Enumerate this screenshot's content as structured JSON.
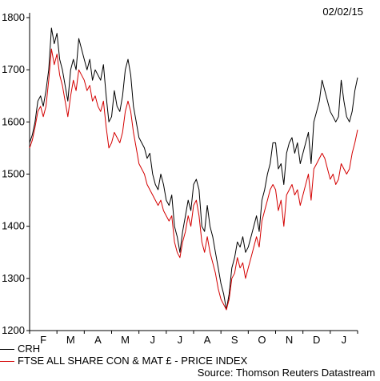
{
  "header": {
    "date": "02/02/15"
  },
  "legend": [
    {
      "label": "CRH",
      "color": "#000000"
    },
    {
      "label": "FTSE ALL SHARE CON & MAT £ - PRICE INDEX",
      "color": "#d40000"
    }
  ],
  "footer": {
    "source": "Source: Thomson Reuters Datastream"
  },
  "chart_data": {
    "type": "line",
    "title": "",
    "xlabel": "",
    "ylabel": "",
    "ylim": [
      1200,
      1800
    ],
    "yticks": [
      1200,
      1300,
      1400,
      1500,
      1600,
      1700,
      1800
    ],
    "xlim": [
      0,
      12
    ],
    "categories": [
      "F",
      "M",
      "A",
      "M",
      "J",
      "J",
      "A",
      "S",
      "O",
      "N",
      "D",
      "J"
    ],
    "grid": false,
    "legend_position": "bottom-left",
    "series": [
      {
        "name": "CRH",
        "color": "#000000",
        "x": [
          0,
          0.1,
          0.2,
          0.3,
          0.4,
          0.5,
          0.6,
          0.7,
          0.8,
          0.9,
          1.0,
          1.1,
          1.2,
          1.3,
          1.4,
          1.5,
          1.6,
          1.7,
          1.8,
          1.9,
          2.0,
          2.1,
          2.2,
          2.3,
          2.4,
          2.5,
          2.6,
          2.7,
          2.8,
          2.9,
          3.0,
          3.1,
          3.2,
          3.3,
          3.4,
          3.5,
          3.6,
          3.7,
          3.8,
          3.9,
          4.0,
          4.1,
          4.2,
          4.3,
          4.4,
          4.5,
          4.6,
          4.7,
          4.8,
          4.9,
          5.0,
          5.1,
          5.2,
          5.3,
          5.4,
          5.5,
          5.6,
          5.7,
          5.8,
          5.9,
          6.0,
          6.1,
          6.2,
          6.3,
          6.4,
          6.5,
          6.6,
          6.7,
          6.8,
          6.9,
          7.0,
          7.1,
          7.2,
          7.3,
          7.4,
          7.5,
          7.6,
          7.7,
          7.8,
          7.9,
          8.0,
          8.1,
          8.2,
          8.3,
          8.4,
          8.5,
          8.6,
          8.7,
          8.8,
          8.9,
          9.0,
          9.1,
          9.2,
          9.3,
          9.4,
          9.5,
          9.6,
          9.7,
          9.8,
          9.9,
          10.0,
          10.1,
          10.2,
          10.3,
          10.4,
          10.5,
          10.6,
          10.7,
          10.8,
          10.9,
          11.0,
          11.1,
          11.2,
          11.3,
          11.4,
          11.5,
          11.6,
          11.7,
          11.8,
          11.9,
          12.0
        ],
        "values": [
          1560,
          1575,
          1600,
          1640,
          1650,
          1630,
          1660,
          1700,
          1780,
          1750,
          1770,
          1720,
          1700,
          1670,
          1640,
          1700,
          1720,
          1700,
          1760,
          1740,
          1720,
          1700,
          1720,
          1680,
          1700,
          1690,
          1680,
          1710,
          1650,
          1600,
          1610,
          1660,
          1630,
          1620,
          1650,
          1700,
          1720,
          1690,
          1630,
          1600,
          1570,
          1560,
          1550,
          1530,
          1540,
          1500,
          1480,
          1470,
          1500,
          1480,
          1450,
          1440,
          1460,
          1400,
          1380,
          1350,
          1390,
          1420,
          1450,
          1430,
          1480,
          1490,
          1470,
          1400,
          1390,
          1440,
          1400,
          1380,
          1350,
          1320,
          1290,
          1270,
          1240,
          1270,
          1320,
          1340,
          1370,
          1360,
          1380,
          1350,
          1360,
          1380,
          1400,
          1420,
          1390,
          1450,
          1470,
          1500,
          1520,
          1560,
          1560,
          1510,
          1520,
          1480,
          1540,
          1560,
          1570,
          1540,
          1560,
          1520,
          1540,
          1560,
          1580,
          1520,
          1600,
          1620,
          1640,
          1680,
          1660,
          1640,
          1620,
          1610,
          1600,
          1610,
          1680,
          1640,
          1610,
          1600,
          1620,
          1660,
          1685
        ]
      },
      {
        "name": "FTSE ALL SHARE CON & MAT £ - PRICE INDEX",
        "color": "#d40000",
        "x": [
          0,
          0.1,
          0.2,
          0.3,
          0.4,
          0.5,
          0.6,
          0.7,
          0.8,
          0.9,
          1.0,
          1.1,
          1.2,
          1.3,
          1.4,
          1.5,
          1.6,
          1.7,
          1.8,
          1.9,
          2.0,
          2.1,
          2.2,
          2.3,
          2.4,
          2.5,
          2.6,
          2.7,
          2.8,
          2.9,
          3.0,
          3.1,
          3.2,
          3.3,
          3.4,
          3.5,
          3.6,
          3.7,
          3.8,
          3.9,
          4.0,
          4.1,
          4.2,
          4.3,
          4.4,
          4.5,
          4.6,
          4.7,
          4.8,
          4.9,
          5.0,
          5.1,
          5.2,
          5.3,
          5.4,
          5.5,
          5.6,
          5.7,
          5.8,
          5.9,
          6.0,
          6.1,
          6.2,
          6.3,
          6.4,
          6.5,
          6.6,
          6.7,
          6.8,
          6.9,
          7.0,
          7.1,
          7.2,
          7.3,
          7.4,
          7.5,
          7.6,
          7.7,
          7.8,
          7.9,
          8.0,
          8.1,
          8.2,
          8.3,
          8.4,
          8.5,
          8.6,
          8.7,
          8.8,
          8.9,
          9.0,
          9.1,
          9.2,
          9.3,
          9.4,
          9.5,
          9.6,
          9.7,
          9.8,
          9.9,
          10.0,
          10.1,
          10.2,
          10.3,
          10.4,
          10.5,
          10.6,
          10.7,
          10.8,
          10.9,
          11.0,
          11.1,
          11.2,
          11.3,
          11.4,
          11.5,
          11.6,
          11.7,
          11.8,
          11.9,
          12.0
        ],
        "values": [
          1550,
          1565,
          1590,
          1620,
          1630,
          1610,
          1630,
          1680,
          1740,
          1710,
          1730,
          1690,
          1670,
          1640,
          1610,
          1650,
          1680,
          1660,
          1700,
          1690,
          1680,
          1660,
          1670,
          1640,
          1650,
          1630,
          1620,
          1640,
          1590,
          1550,
          1560,
          1580,
          1570,
          1560,
          1580,
          1620,
          1640,
          1620,
          1580,
          1550,
          1520,
          1510,
          1500,
          1480,
          1470,
          1460,
          1450,
          1440,
          1450,
          1430,
          1420,
          1410,
          1420,
          1370,
          1350,
          1340,
          1370,
          1390,
          1420,
          1400,
          1440,
          1450,
          1420,
          1370,
          1350,
          1380,
          1350,
          1330,
          1310,
          1280,
          1260,
          1250,
          1240,
          1260,
          1300,
          1310,
          1340,
          1320,
          1330,
          1300,
          1320,
          1340,
          1360,
          1380,
          1360,
          1410,
          1430,
          1450,
          1470,
          1480,
          1470,
          1430,
          1450,
          1400,
          1460,
          1470,
          1480,
          1460,
          1470,
          1440,
          1460,
          1480,
          1500,
          1450,
          1510,
          1520,
          1530,
          1540,
          1530,
          1510,
          1490,
          1500,
          1480,
          1490,
          1520,
          1510,
          1500,
          1510,
          1540,
          1560,
          1585
        ]
      }
    ]
  }
}
